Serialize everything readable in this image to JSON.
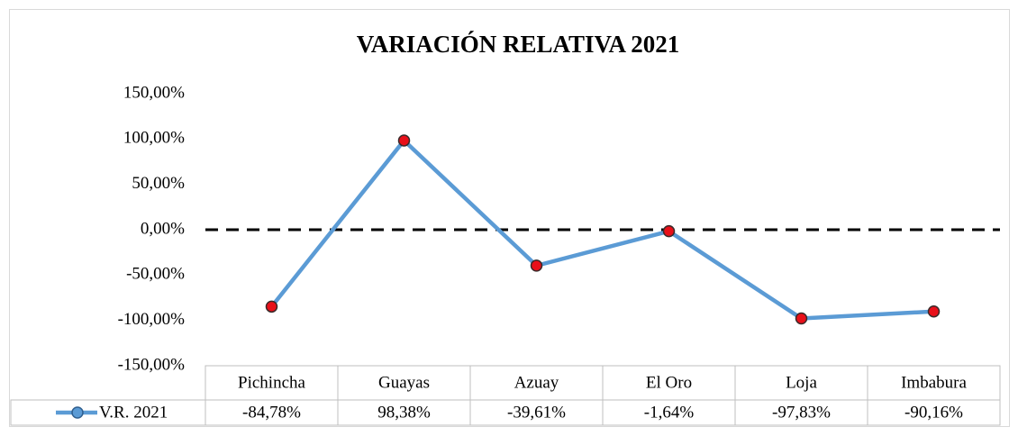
{
  "chart_data": {
    "type": "line",
    "title": "VARIACIÓN RELATIVA 2021",
    "categories": [
      "Pichincha",
      "Guayas",
      "Azuay",
      "El Oro",
      "Loja",
      "Imbabura"
    ],
    "series": [
      {
        "name": "V.R. 2021",
        "color": "#5b9bd5",
        "marker_color": "#e8101a",
        "values": [
          -84.78,
          98.38,
          -39.61,
          -1.64,
          -97.83,
          -90.16
        ],
        "value_labels": [
          "-84,78%",
          "98,38%",
          "-39,61%",
          "-1,64%",
          "-97,83%",
          "-90,16%"
        ]
      }
    ],
    "ylim": [
      -150,
      150
    ],
    "yticks": [
      {
        "value": 150,
        "label": "150,00%"
      },
      {
        "value": 100,
        "label": "100,00%"
      },
      {
        "value": 50,
        "label": "50,00%"
      },
      {
        "value": 0,
        "label": "0,00%"
      },
      {
        "value": -50,
        "label": "-50,00%"
      },
      {
        "value": -100,
        "label": "-100,00%"
      },
      {
        "value": -150,
        "label": "-150,00%"
      }
    ],
    "zero_line": true,
    "data_table": true
  }
}
